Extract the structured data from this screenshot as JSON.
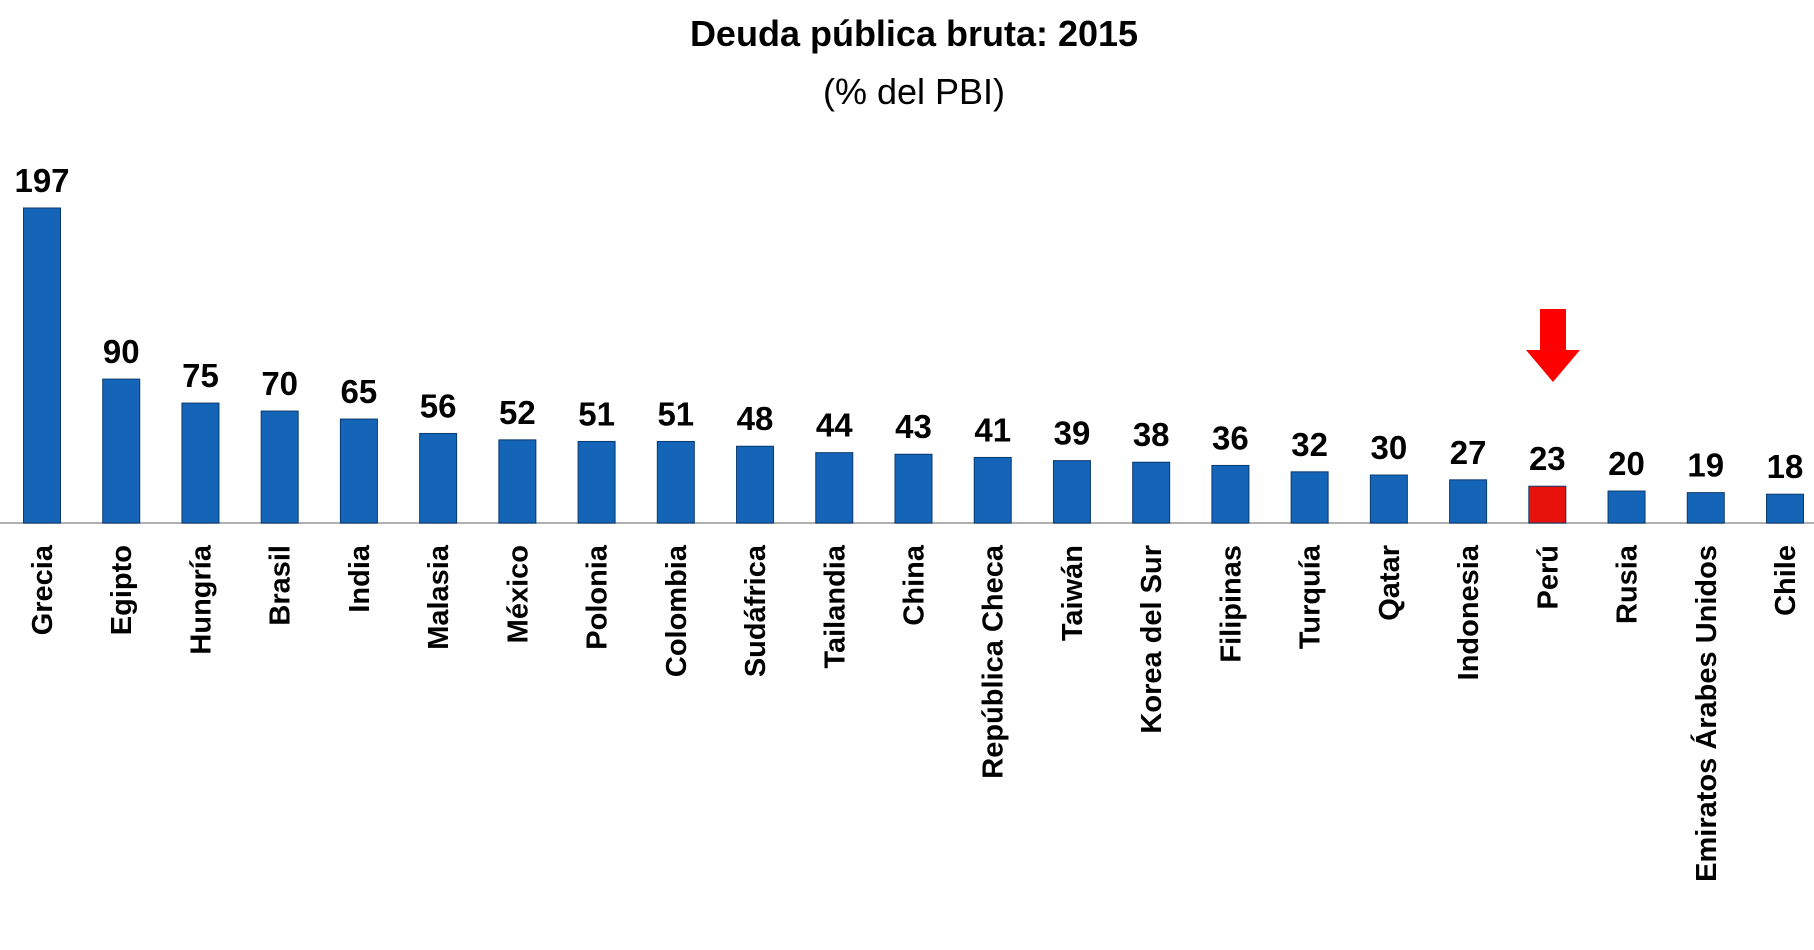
{
  "chart_data": {
    "type": "bar",
    "title": "Deuda pública bruta: 2015",
    "subtitle": "(% del PBI)",
    "categories": [
      "Grecia",
      "Egipto",
      "Hungría",
      "Brasil",
      "India",
      "Malasia",
      "México",
      "Polonia",
      "Colombia",
      "Sudáfrica",
      "Tailandia",
      "China",
      "República Checa",
      "Taiwán",
      "Korea del Sur",
      "Filipinas",
      "Turquía",
      "Qatar",
      "Indonesia",
      "Perú",
      "Rusia",
      "Emiratos Árabes Unidos",
      "Chile"
    ],
    "values": [
      197,
      90,
      75,
      70,
      65,
      56,
      52,
      51,
      51,
      48,
      44,
      43,
      41,
      39,
      38,
      36,
      32,
      30,
      27,
      23,
      20,
      19,
      18
    ],
    "colors": [
      "#1464b8",
      "#1464b8",
      "#1464b8",
      "#1464b8",
      "#1464b8",
      "#1464b8",
      "#1464b8",
      "#1464b8",
      "#1464b8",
      "#1464b8",
      "#1464b8",
      "#1464b8",
      "#1464b8",
      "#1464b8",
      "#1464b8",
      "#1464b8",
      "#1464b8",
      "#1464b8",
      "#1464b8",
      "#e8120c",
      "#1464b8",
      "#1464b8",
      "#1464b8"
    ]
  }
}
